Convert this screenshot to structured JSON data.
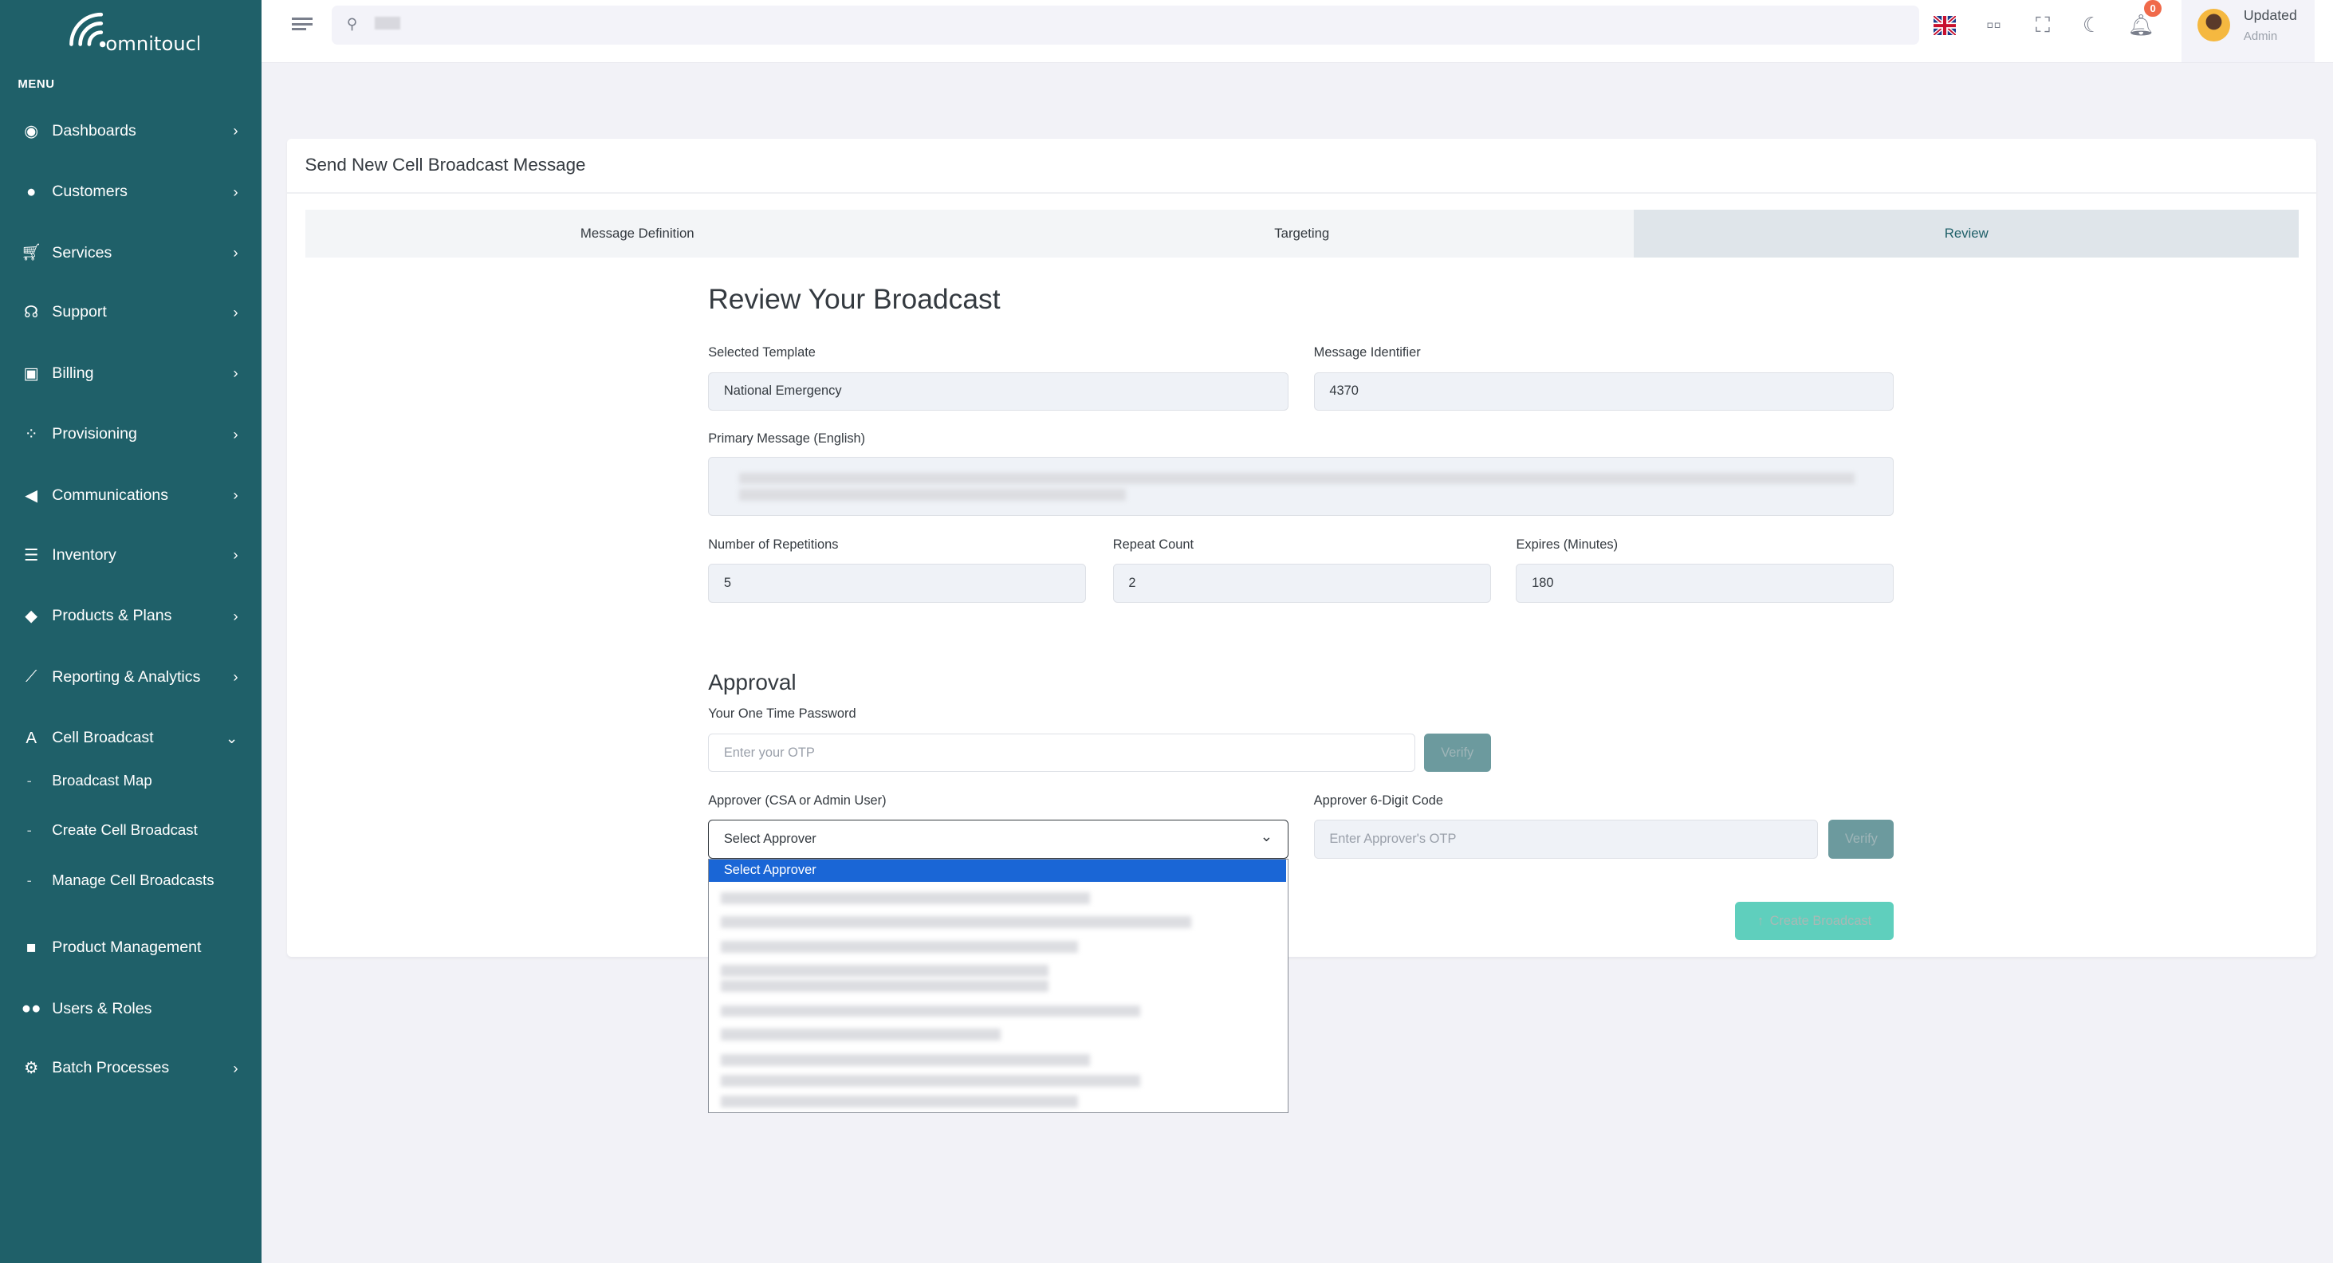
{
  "brand": {
    "logo_text": "omnitouch",
    "sidebar_color": "#1f6069"
  },
  "sidebar": {
    "menu_title": "MENU",
    "items": [
      {
        "label": "Dashboards",
        "icon": "dashboard-icon",
        "chevron": true
      },
      {
        "label": "Customers",
        "icon": "user-icon",
        "chevron": true
      },
      {
        "label": "Services",
        "icon": "cart-icon",
        "chevron": true
      },
      {
        "label": "Support",
        "icon": "headset-icon",
        "chevron": true
      },
      {
        "label": "Billing",
        "icon": "money-icon",
        "chevron": true
      },
      {
        "label": "Provisioning",
        "icon": "spinner-icon",
        "chevron": true
      },
      {
        "label": "Communications",
        "icon": "megaphone-icon",
        "chevron": true
      },
      {
        "label": "Inventory",
        "icon": "warehouse-icon",
        "chevron": true
      },
      {
        "label": "Products & Plans",
        "icon": "tags-icon",
        "chevron": true
      },
      {
        "label": "Reporting & Analytics",
        "icon": "chart-line-icon",
        "chevron": true
      },
      {
        "label": "Cell Broadcast",
        "icon": "tower-icon",
        "chevron": "down"
      },
      {
        "label": "Product Management",
        "icon": "box-icon",
        "chevron": false
      },
      {
        "label": "Users & Roles",
        "icon": "users-icon",
        "chevron": false
      },
      {
        "label": "Batch Processes",
        "icon": "gears-icon",
        "chevron": true
      }
    ],
    "cell_broadcast_sub": [
      "Broadcast Map",
      "Create Cell Broadcast",
      "Manage Cell Broadcasts"
    ]
  },
  "topbar": {
    "notification_count": "0",
    "user_name": "Updated",
    "user_role": "Admin"
  },
  "card": {
    "title": "Send New Cell Broadcast Message",
    "tabs": [
      {
        "label": "Message Definition"
      },
      {
        "label": "Targeting"
      },
      {
        "label": "Review",
        "active": true
      }
    ]
  },
  "review": {
    "heading": "Review Your Broadcast",
    "selected_template_label": "Selected Template",
    "selected_template": "National Emergency",
    "message_identifier_label": "Message Identifier",
    "message_identifier": "4370",
    "primary_message_label": "Primary Message (English)",
    "repetitions_label": "Number of Repetitions",
    "repetitions": "5",
    "repeat_count_label": "Repeat Count",
    "repeat_count": "2",
    "expires_label": "Expires (Minutes)",
    "expires": "180"
  },
  "approval": {
    "heading": "Approval",
    "otp_label": "Your One Time Password",
    "otp_placeholder": "Enter your OTP",
    "verify_label": "Verify",
    "approver_label": "Approver (CSA or Admin User)",
    "approver_selected": "Select Approver",
    "approver_options": [
      "Select Approver"
    ],
    "approver_code_label": "Approver 6-Digit Code",
    "approver_code_placeholder": "Enter Approver's OTP",
    "create_label": "Create Broadcast"
  }
}
